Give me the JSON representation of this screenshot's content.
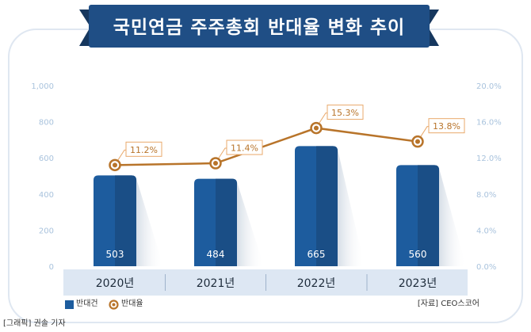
{
  "header": {
    "title": "국민연금 주주총회 반대율 변화 추이"
  },
  "legend": {
    "bar_label": "반대건",
    "line_label": "반대율"
  },
  "source": "[자료] CEO스코어",
  "credit": "[그래픽] 권솔 기자",
  "colors": {
    "bar": "#1d5c9e",
    "bar_dark": "#1a4e86",
    "line": "#b8742a",
    "banner": "#1f4e85",
    "axis_text": "#a9c3dd",
    "label_box": "#e9a96b",
    "year_band": "#dde7f3"
  },
  "chart_data": {
    "type": "bar",
    "categories": [
      "2020년",
      "2021년",
      "2022년",
      "2023년"
    ],
    "series": [
      {
        "name": "반대건",
        "type": "bar",
        "values": [
          503,
          484,
          665,
          560
        ],
        "labels": [
          "503",
          "484",
          "665",
          "560"
        ],
        "axis": "left"
      },
      {
        "name": "반대율",
        "type": "line",
        "values": [
          11.2,
          11.4,
          15.3,
          13.8
        ],
        "labels": [
          "11.2%",
          "11.4%",
          "15.3%",
          "13.8%"
        ],
        "axis": "right"
      }
    ],
    "y_left": {
      "range": [
        0,
        1000
      ],
      "ticks": [
        0,
        200,
        400,
        600,
        800
      ],
      "tick_labels": [
        "0",
        "200",
        "400",
        "600",
        "800"
      ],
      "top_label": "1,000"
    },
    "y_right": {
      "range": [
        0,
        20
      ],
      "ticks": [
        0,
        4,
        8,
        12,
        16,
        20
      ],
      "tick_labels": [
        "0.0%",
        "4.0%",
        "8.0%",
        "12.0%",
        "16.0%",
        "20.0%"
      ]
    },
    "grid": false,
    "legend_position": "bottom-left"
  }
}
